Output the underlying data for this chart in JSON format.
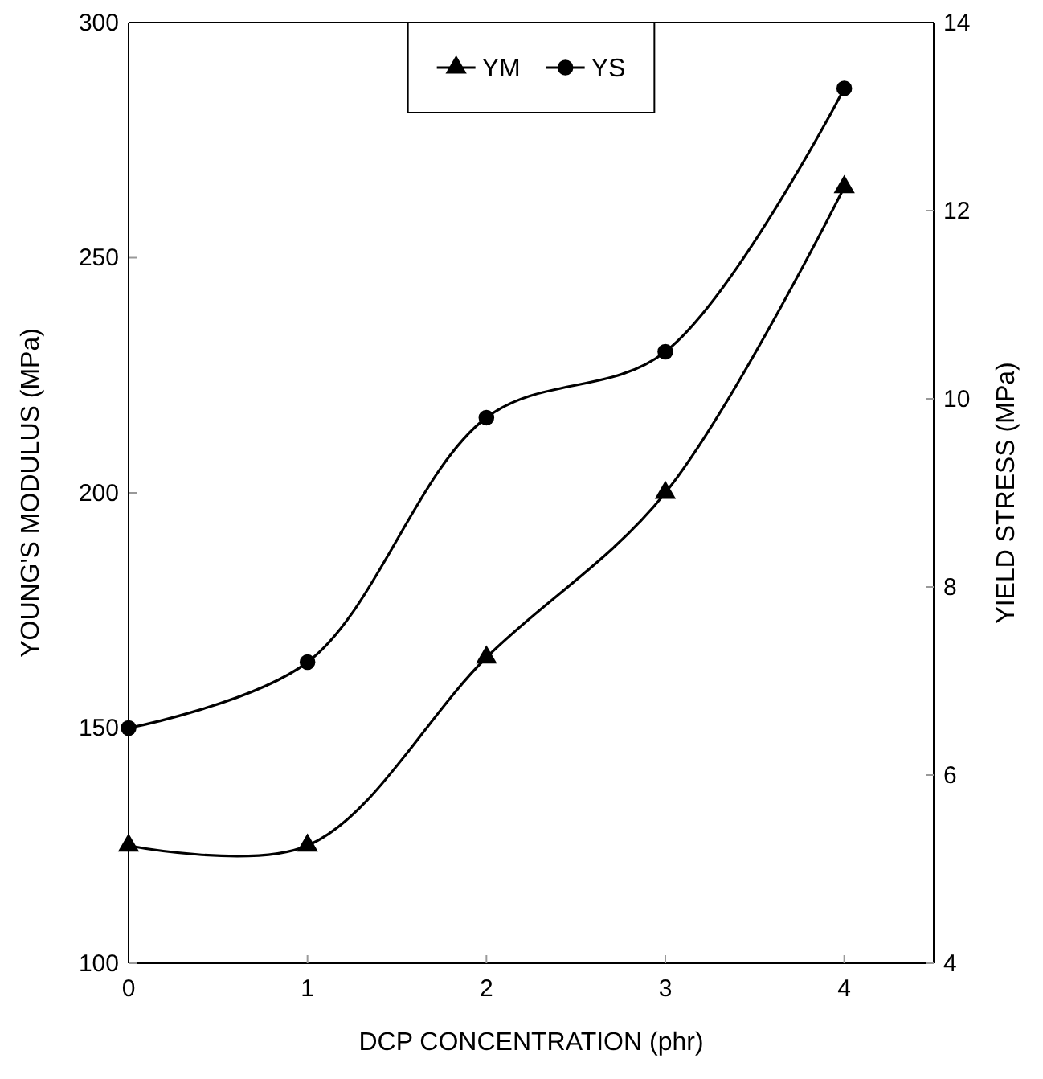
{
  "chart_data": {
    "type": "line",
    "xlabel": "DCP CONCENTRATION (phr)",
    "ylabel": "YOUNG'S MODULUS (MPa)",
    "y2label": "YIELD STRESS (MPa)",
    "x": [
      0,
      1,
      2,
      3,
      4
    ],
    "series": [
      {
        "name": "YM",
        "color": "#000000",
        "marker": "triangle",
        "values": [
          125,
          125,
          165,
          200,
          265
        ]
      },
      {
        "name": "YS",
        "color": "#000000",
        "marker": "circle",
        "axis": "y2",
        "values": [
          6.5,
          7.2,
          9.8,
          10.5,
          13.3
        ]
      }
    ],
    "xlim": [
      0,
      4.5
    ],
    "xticks": [
      0,
      1,
      2,
      3,
      4
    ],
    "ylim": [
      100,
      300
    ],
    "yticks": [
      100,
      150,
      200,
      250,
      300
    ],
    "y2lim": [
      4,
      14
    ],
    "y2ticks": [
      4,
      6,
      8,
      10,
      12,
      14
    ],
    "line_style": "solid",
    "grid": false,
    "legend": "top"
  }
}
